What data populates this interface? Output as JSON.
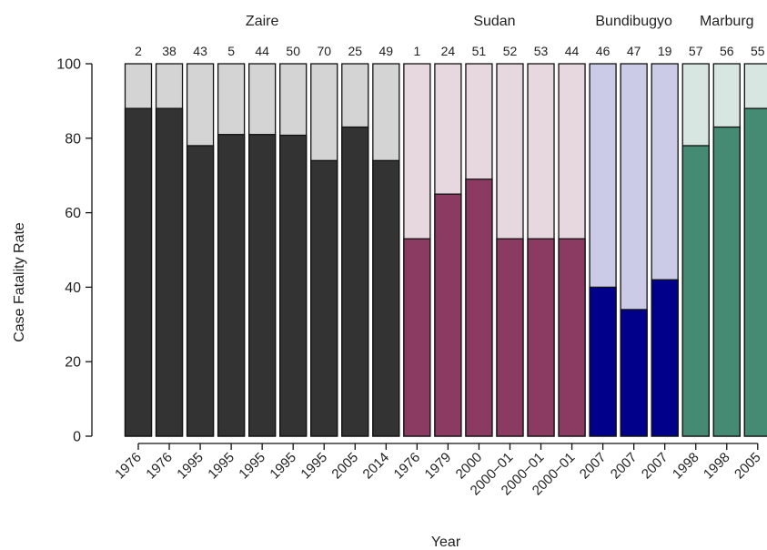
{
  "chart_data": {
    "type": "bar",
    "ylabel": "Case Fatality Rate",
    "xlabel": "Year",
    "ylim": [
      0,
      100
    ],
    "yticks": [
      0,
      20,
      40,
      60,
      80,
      100
    ],
    "grid": false,
    "groups": [
      {
        "name": "Zaire",
        "fill_color": "#333333",
        "bg_color": "#d4d4d4",
        "bars": [
          {
            "year": "1976",
            "count": "2",
            "value": 88
          },
          {
            "year": "1976",
            "count": "38",
            "value": 88
          },
          {
            "year": "1995",
            "count": "43",
            "value": 78
          },
          {
            "year": "1995",
            "count": "5",
            "value": 81
          },
          {
            "year": "1995",
            "count": "44",
            "value": 81
          },
          {
            "year": "1995",
            "count": "50",
            "value": 80.8
          },
          {
            "year": "1995",
            "count": "70",
            "value": 74
          },
          {
            "year": "2005",
            "count": "25",
            "value": 83
          },
          {
            "year": "2014",
            "count": "49",
            "value": 74
          }
        ]
      },
      {
        "name": "Sudan",
        "fill_color": "#8b3a62",
        "bg_color": "#e7d8e0",
        "bars": [
          {
            "year": "1976",
            "count": "1",
            "value": 53
          },
          {
            "year": "1979",
            "count": "24",
            "value": 65
          },
          {
            "year": "2000",
            "count": "51",
            "value": 69
          },
          {
            "year": "2000−01",
            "count": "52",
            "value": 53
          },
          {
            "year": "2000−01",
            "count": "53",
            "value": 53
          },
          {
            "year": "2000−01",
            "count": "44",
            "value": 53
          }
        ]
      },
      {
        "name": "Bundibugyo",
        "fill_color": "#00008b",
        "bg_color": "#cbcae7",
        "bars": [
          {
            "year": "2007",
            "count": "46",
            "value": 40
          },
          {
            "year": "2007",
            "count": "47",
            "value": 34
          },
          {
            "year": "2007",
            "count": "19",
            "value": 42
          }
        ]
      },
      {
        "name": "Marburg",
        "fill_color": "#458b74",
        "bg_color": "#d8e6e1",
        "bars": [
          {
            "year": "1998",
            "count": "57",
            "value": 78
          },
          {
            "year": "1998",
            "count": "56",
            "value": 83
          },
          {
            "year": "2005",
            "count": "55",
            "value": 88
          }
        ]
      }
    ]
  }
}
